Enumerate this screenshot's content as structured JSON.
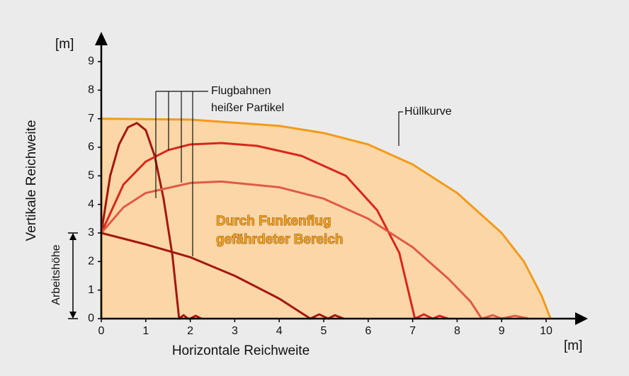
{
  "chart_data": {
    "type": "line",
    "x_label": "Horizontale Reichweite",
    "y_label": "Vertikale Reichweite",
    "x_unit": "[m]",
    "y_unit": "[m]",
    "xlim": [
      0,
      10
    ],
    "ylim": [
      0,
      9
    ],
    "xticks": [
      0,
      1,
      2,
      3,
      4,
      5,
      6,
      7,
      8,
      9,
      10
    ],
    "yticks": [
      0,
      1,
      2,
      3,
      4,
      5,
      6,
      7,
      8,
      9
    ],
    "annotations": {
      "trajectories_line1": "Flugbahnen",
      "trajectories_line2": "heißer Partikel",
      "area_line1": "Durch Funkenflug",
      "area_line2": "gefährdeter Bereich",
      "work_height": "Arbeitshöhe"
    },
    "work_height_range": [
      0,
      3
    ],
    "envelope": {
      "name": "Hüllkurve",
      "color": "#f39a1a",
      "fill": "#fbd6a6",
      "x": [
        0,
        0,
        2,
        4,
        5,
        6,
        7,
        8,
        9,
        9.5,
        9.9,
        10.1
      ],
      "y": [
        0,
        7,
        6.97,
        6.75,
        6.5,
        6.1,
        5.4,
        4.4,
        3.0,
        2.0,
        0.8,
        0
      ]
    },
    "series": [
      {
        "color": "#a3170f",
        "x": [
          0,
          0.2,
          0.4,
          0.6,
          0.8,
          1.0,
          1.2,
          1.4,
          1.6,
          1.75,
          1.85,
          1.95,
          2.0,
          2.12,
          2.25
        ],
        "y": [
          3,
          5,
          6.1,
          6.7,
          6.85,
          6.6,
          5.7,
          4.2,
          2.2,
          0,
          0.12,
          0,
          0,
          0.1,
          0
        ]
      },
      {
        "color": "#d9261c",
        "x": [
          0,
          0.5,
          1,
          1.5,
          2,
          2.7,
          3.5,
          4.5,
          5.5,
          6.2,
          6.7,
          7.05,
          7.25,
          7.45,
          7.6,
          7.8
        ],
        "y": [
          3,
          4.7,
          5.5,
          5.9,
          6.1,
          6.15,
          6.05,
          5.7,
          5.0,
          3.8,
          2.3,
          0,
          0.15,
          0,
          0.1,
          0
        ]
      },
      {
        "color": "#e05a45",
        "x": [
          0,
          0.5,
          1,
          2,
          2.7,
          4,
          5,
          6,
          7,
          7.8,
          8.3,
          8.55,
          8.8,
          9.0,
          9.3,
          9.6
        ],
        "y": [
          3,
          3.9,
          4.4,
          4.75,
          4.8,
          4.6,
          4.2,
          3.5,
          2.5,
          1.4,
          0.6,
          0,
          0.12,
          0,
          0.1,
          0
        ]
      },
      {
        "color": "#a3170f",
        "x": [
          0,
          1,
          2,
          3,
          4,
          4.7,
          4.9,
          5.1,
          5.25,
          5.45
        ],
        "y": [
          3,
          2.6,
          2.15,
          1.5,
          0.7,
          0,
          0.15,
          0,
          0.12,
          0
        ]
      }
    ]
  }
}
